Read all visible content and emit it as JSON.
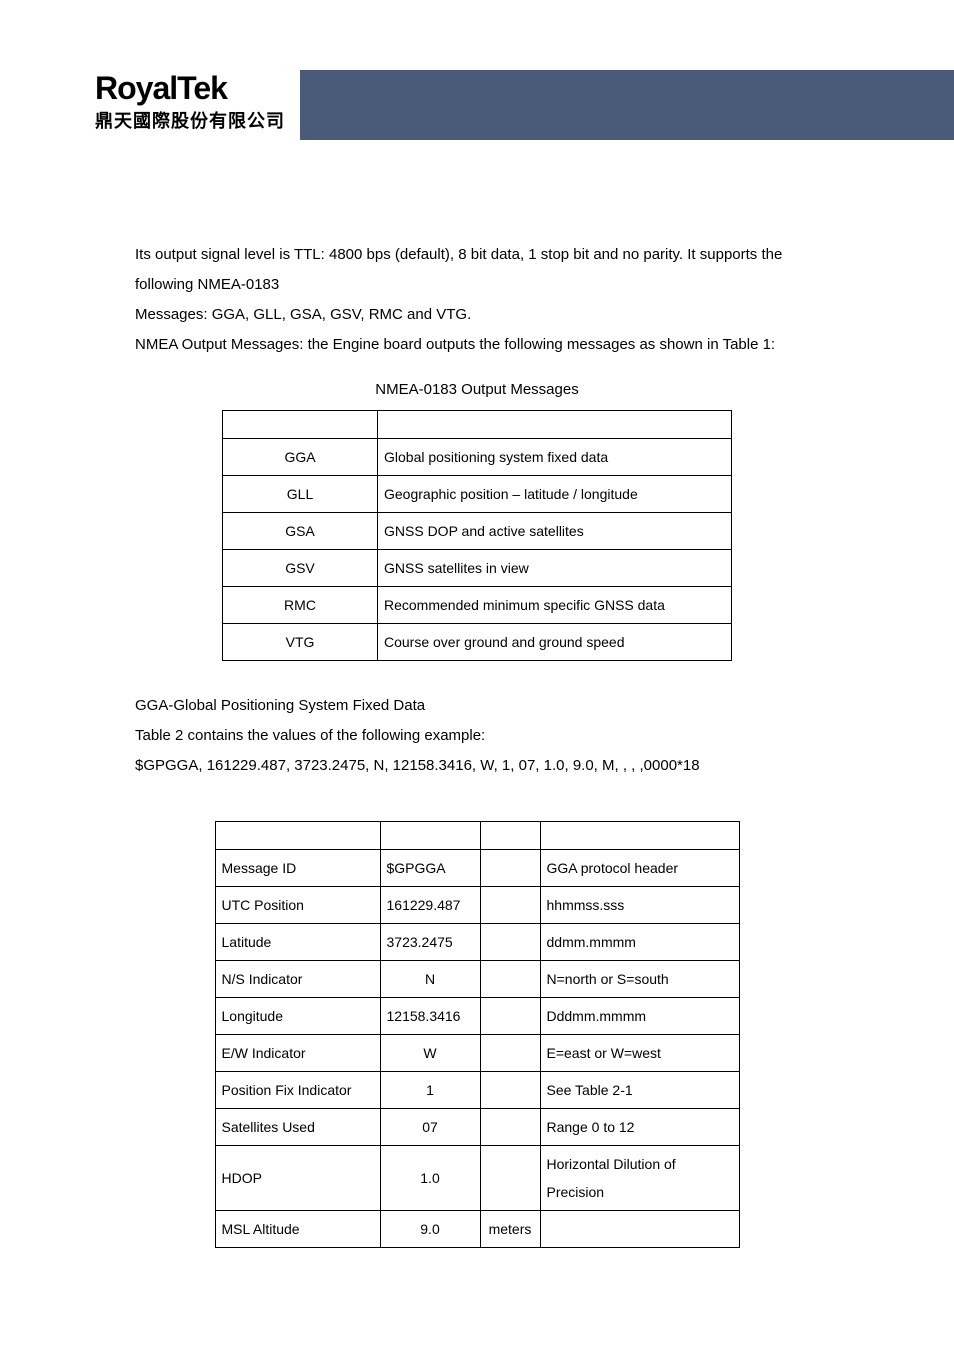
{
  "logo": {
    "en": "RoyalTek",
    "zh": "鼎天國際股份有限公司"
  },
  "intro": {
    "p1": "Its output signal level is TTL: 4800 bps (default), 8 bit data, 1 stop bit and no parity. It supports the following NMEA-0183",
    "p2": "Messages: GGA, GLL, GSA, GSV, RMC and VTG.",
    "p3": "NMEA Output Messages: the Engine board outputs the following messages as shown in Table 1:"
  },
  "table1": {
    "caption": "NMEA-0183 Output Messages",
    "rows": [
      {
        "msg": "GGA",
        "desc": "Global positioning system fixed data"
      },
      {
        "msg": "GLL",
        "desc": "Geographic position – latitude / longitude"
      },
      {
        "msg": "GSA",
        "desc": "GNSS DOP and active satellites"
      },
      {
        "msg": "GSV",
        "desc": "GNSS satellites in view"
      },
      {
        "msg": "RMC",
        "desc": "Recommended minimum specific GNSS data"
      },
      {
        "msg": "VTG",
        "desc": "Course over ground and ground speed"
      }
    ]
  },
  "gga": {
    "title": "GGA-Global Positioning System Fixed Data",
    "sub": "Table 2 contains the values of the following example:",
    "example": "$GPGGA, 161229.487, 3723.2475, N, 12158.3416, W, 1, 07, 1.0, 9.0, M, , , ,0000*18"
  },
  "table2": {
    "rows": [
      {
        "name": "Message ID",
        "example": "$GPGGA",
        "units": "",
        "desc": "GGA protocol header",
        "align": "left"
      },
      {
        "name": "UTC Position",
        "example": "161229.487",
        "units": "",
        "desc": "hhmmss.sss",
        "align": "left"
      },
      {
        "name": "Latitude",
        "example": "3723.2475",
        "units": "",
        "desc": "ddmm.mmmm",
        "align": "left"
      },
      {
        "name": "N/S Indicator",
        "example": "N",
        "units": "",
        "desc": "N=north or S=south",
        "align": "center"
      },
      {
        "name": "Longitude",
        "example": "12158.3416",
        "units": "",
        "desc": "Dddmm.mmmm",
        "align": "left"
      },
      {
        "name": "E/W Indicator",
        "example": "W",
        "units": "",
        "desc": "E=east or W=west",
        "align": "center"
      },
      {
        "name": "Position Fix Indicator",
        "example": "1",
        "units": "",
        "desc": "See Table 2-1",
        "align": "center"
      },
      {
        "name": "Satellites Used",
        "example": "07",
        "units": "",
        "desc": "Range 0 to 12",
        "align": "center"
      },
      {
        "name": "HDOP",
        "example": "1.0",
        "units": "",
        "desc": "Horizontal Dilution of Precision",
        "align": "center"
      },
      {
        "name": "MSL Altitude",
        "example": "9.0",
        "units": "meters",
        "desc": "",
        "align": "center"
      }
    ]
  }
}
